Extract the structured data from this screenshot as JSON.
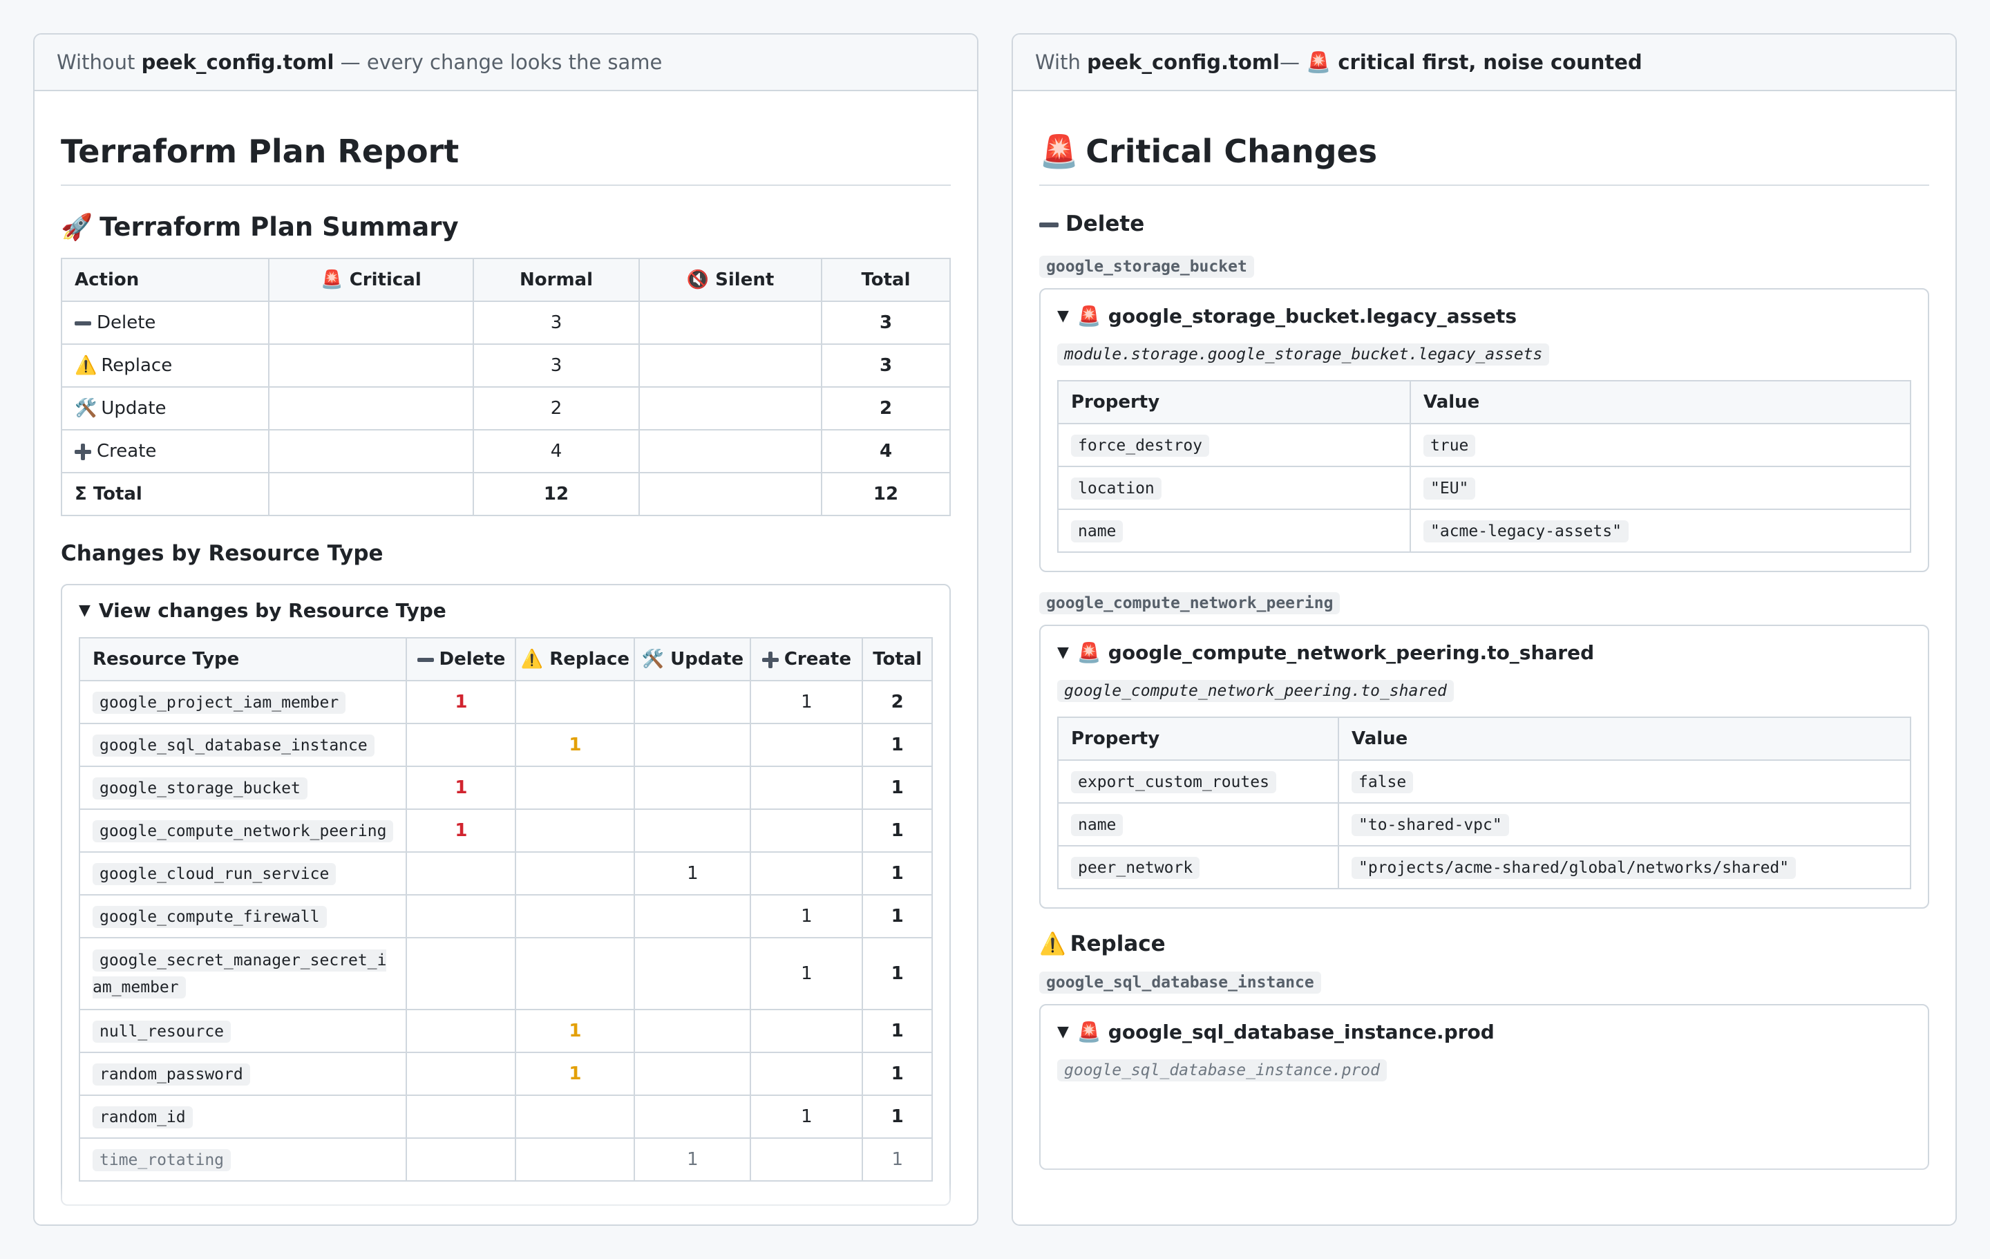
{
  "left": {
    "header": {
      "prefix": "Without ",
      "file": "peek_config.toml",
      "suffix": " — every change looks the same"
    },
    "report_title": "Terraform Plan Report",
    "summary": {
      "icon": "🚀",
      "title": "Terraform Plan Summary",
      "columns": {
        "action": "Action",
        "critical": "Critical",
        "critical_icon": "🚨",
        "normal": "Normal",
        "silent": "Silent",
        "silent_icon": "🔇",
        "total": "Total"
      },
      "rows": [
        {
          "icon": "minus-icon",
          "action": "Delete",
          "critical": "",
          "normal": "3",
          "silent": "",
          "total": "3"
        },
        {
          "icon": "⚠️",
          "action": "Replace",
          "critical": "",
          "normal": "3",
          "silent": "",
          "total": "3"
        },
        {
          "icon": "🛠️",
          "action": "Update",
          "critical": "",
          "normal": "2",
          "silent": "",
          "total": "2"
        },
        {
          "icon": "plus-icon",
          "action": "Create",
          "critical": "",
          "normal": "4",
          "silent": "",
          "total": "4"
        }
      ],
      "total_row": {
        "action": "Σ Total",
        "critical": "",
        "normal": "12",
        "silent": "",
        "total": "12"
      }
    },
    "by_type": {
      "title": "Changes by Resource Type",
      "summary_label": "View changes by Resource Type",
      "columns": {
        "type": "Resource Type",
        "delete": "Delete",
        "replace": "Replace",
        "replace_icon": "⚠️",
        "update": "Update",
        "update_icon": "🛠️",
        "create": "Create",
        "total": "Total"
      },
      "rows": [
        {
          "type": "google_project_iam_member",
          "delete": "1",
          "replace": "",
          "update": "",
          "create": "1",
          "total": "2"
        },
        {
          "type": "google_sql_database_instance",
          "delete": "",
          "replace": "1",
          "update": "",
          "create": "",
          "total": "1"
        },
        {
          "type": "google_storage_bucket",
          "delete": "1",
          "replace": "",
          "update": "",
          "create": "",
          "total": "1"
        },
        {
          "type": "google_compute_network_peering",
          "delete": "1",
          "replace": "",
          "update": "",
          "create": "",
          "total": "1"
        },
        {
          "type": "google_cloud_run_service",
          "delete": "",
          "replace": "",
          "update": "1",
          "create": "",
          "total": "1"
        },
        {
          "type": "google_compute_firewall",
          "delete": "",
          "replace": "",
          "update": "",
          "create": "1",
          "total": "1"
        },
        {
          "type": "google_secret_manager_secret_iam_member",
          "delete": "",
          "replace": "",
          "update": "",
          "create": "1",
          "total": "1"
        },
        {
          "type": "null_resource",
          "delete": "",
          "replace": "1",
          "update": "",
          "create": "",
          "total": "1"
        },
        {
          "type": "random_password",
          "delete": "",
          "replace": "1",
          "update": "",
          "create": "",
          "total": "1"
        },
        {
          "type": "random_id",
          "delete": "",
          "replace": "",
          "update": "",
          "create": "1",
          "total": "1"
        },
        {
          "type": "time_rotating",
          "delete": "",
          "replace": "",
          "update": "1",
          "create": "",
          "total": "1"
        }
      ]
    }
  },
  "right": {
    "header": {
      "prefix": "With ",
      "file": "peek_config.toml",
      "dash": " — ",
      "icon": "🚨",
      "suffix": " critical first, noise counted"
    },
    "title_icon": "🚨",
    "title": "Critical Changes",
    "delete_heading": "Delete",
    "replace_icon": "⚠️",
    "replace_heading": "Replace",
    "critical_icon": "🚨",
    "property_header": "Property",
    "value_header": "Value",
    "groups": [
      {
        "type": "google_storage_bucket",
        "resource": "google_storage_bucket.legacy_assets",
        "address": "module.storage.google_storage_bucket.legacy_assets",
        "props": [
          {
            "k": "force_destroy",
            "v": "true"
          },
          {
            "k": "location",
            "v": "\"EU\""
          },
          {
            "k": "name",
            "v": "\"acme-legacy-assets\""
          }
        ]
      },
      {
        "type": "google_compute_network_peering",
        "resource": "google_compute_network_peering.to_shared",
        "address": "google_compute_network_peering.to_shared",
        "props": [
          {
            "k": "export_custom_routes",
            "v": "false"
          },
          {
            "k": "name",
            "v": "\"to-shared-vpc\""
          },
          {
            "k": "peer_network",
            "v": "\"projects/acme-shared/global/networks/shared\""
          }
        ]
      },
      {
        "type": "google_sql_database_instance",
        "resource": "google_sql_database_instance.prod",
        "address": "google_sql_database_instance.prod"
      }
    ]
  }
}
